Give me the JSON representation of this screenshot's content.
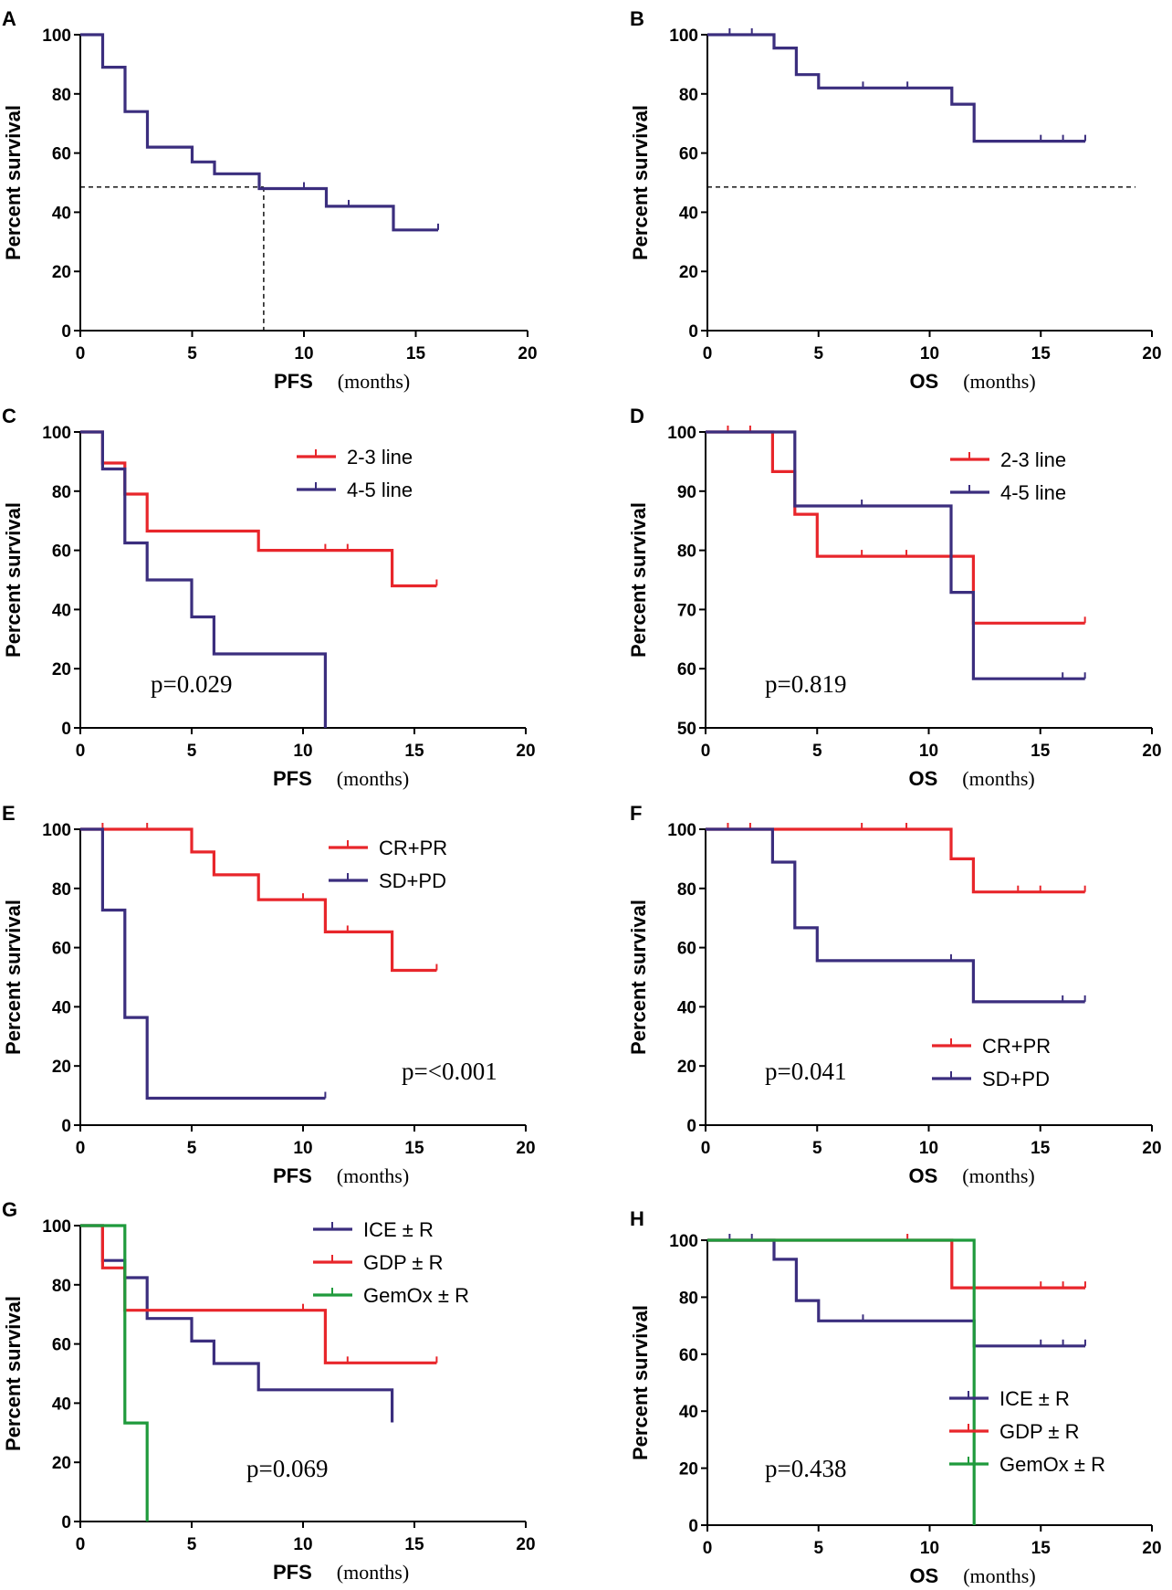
{
  "colors": {
    "navy": "#3b2e7e",
    "red": "#e8262b",
    "green": "#1f9a3c"
  },
  "chart_data": [
    {
      "panel": "A",
      "type": "line",
      "ylabel": "Percent survival",
      "xlabel": "PFS",
      "xunit": "(months)",
      "xlim": [
        0,
        20
      ],
      "ylim": [
        0,
        100
      ],
      "xticks": [
        "0",
        "5",
        "10",
        "15",
        "20"
      ],
      "yticks": [
        "0",
        "20",
        "40",
        "60",
        "80",
        "100"
      ],
      "pvalue": "",
      "reference": {
        "median_y": 48.5,
        "median_x": 8.2
      },
      "series": [
        {
          "name": "",
          "color": "navy",
          "x": [
            0,
            1,
            1,
            2,
            2,
            3,
            3,
            5,
            5,
            6,
            6,
            8,
            8,
            11,
            11,
            14,
            14,
            16
          ],
          "y": [
            100,
            100,
            89,
            89,
            74,
            74,
            62,
            62,
            57,
            57,
            53,
            53,
            48,
            48,
            42,
            42,
            34,
            34
          ],
          "censor": [
            [
              10,
              48
            ],
            [
              12,
              42
            ],
            [
              16,
              34
            ]
          ]
        }
      ]
    },
    {
      "panel": "B",
      "type": "line",
      "ylabel": "Percent survival",
      "xlabel": "OS",
      "xunit": "(months)",
      "xlim": [
        0,
        20
      ],
      "ylim": [
        0,
        100
      ],
      "xticks": [
        "0",
        "5",
        "10",
        "15",
        "20"
      ],
      "yticks": [
        "0",
        "20",
        "40",
        "60",
        "80",
        "100"
      ],
      "pvalue": "",
      "reference": {
        "median_y": 48.5
      },
      "series": [
        {
          "name": "",
          "color": "navy",
          "x": [
            0,
            3,
            3,
            4,
            4,
            5,
            5,
            11,
            11,
            12,
            12,
            17
          ],
          "y": [
            100,
            100,
            95.5,
            95.5,
            86.5,
            86.5,
            82,
            82,
            76.5,
            76.5,
            64,
            64
          ],
          "censor": [
            [
              1,
              100
            ],
            [
              2,
              100
            ],
            [
              7,
              82
            ],
            [
              9,
              82
            ],
            [
              15,
              64
            ],
            [
              16,
              64
            ],
            [
              17,
              64
            ]
          ]
        }
      ]
    },
    {
      "panel": "C",
      "type": "line",
      "ylabel": "Percent survival",
      "xlabel": "PFS",
      "xunit": "(months)",
      "xlim": [
        0,
        20
      ],
      "ylim": [
        0,
        100
      ],
      "xticks": [
        "0",
        "5",
        "10",
        "15",
        "20"
      ],
      "yticks": [
        "0",
        "20",
        "40",
        "60",
        "80",
        "100"
      ],
      "pvalue": "p=0.029",
      "series": [
        {
          "name": "2-3 line",
          "color": "red",
          "x": [
            0,
            1,
            1,
            2,
            2,
            3,
            3,
            8,
            8,
            14,
            14,
            16
          ],
          "y": [
            100,
            100,
            89.5,
            89.5,
            79,
            79,
            66.5,
            66.5,
            60,
            60,
            48,
            48
          ],
          "censor": [
            [
              11,
              60
            ],
            [
              12,
              60
            ],
            [
              16,
              48
            ]
          ]
        },
        {
          "name": "4-5 line",
          "color": "navy",
          "x": [
            0,
            1,
            1,
            2,
            2,
            3,
            3,
            5,
            5,
            6,
            6,
            11,
            11
          ],
          "y": [
            100,
            100,
            87.5,
            87.5,
            62.5,
            62.5,
            50,
            50,
            37.5,
            37.5,
            25,
            25,
            0
          ],
          "censor": []
        }
      ]
    },
    {
      "panel": "D",
      "type": "line",
      "ylabel": "Percent survival",
      "xlabel": "OS",
      "xunit": "(months)",
      "xlim": [
        0,
        20
      ],
      "ylim": [
        50,
        100
      ],
      "xticks": [
        "0",
        "5",
        "10",
        "15",
        "20"
      ],
      "yticks": [
        "50",
        "60",
        "70",
        "80",
        "90",
        "100"
      ],
      "pvalue": "p=0.819",
      "series": [
        {
          "name": "2-3 line",
          "color": "red",
          "x": [
            0,
            3,
            3,
            4,
            4,
            5,
            5,
            12,
            12,
            17
          ],
          "y": [
            100,
            100,
            93.3,
            93.3,
            86.1,
            86.1,
            79,
            79,
            67.7,
            67.7
          ],
          "censor": [
            [
              1,
              100
            ],
            [
              2,
              100
            ],
            [
              7,
              79
            ],
            [
              9,
              79
            ],
            [
              17,
              67.7
            ]
          ]
        },
        {
          "name": "4-5 line",
          "color": "navy",
          "x": [
            0,
            4,
            4,
            11,
            11,
            12,
            12,
            17
          ],
          "y": [
            100,
            100,
            87.5,
            87.5,
            72.9,
            72.9,
            58.3,
            58.3
          ],
          "censor": [
            [
              7,
              87.5
            ],
            [
              16,
              58.3
            ],
            [
              17,
              58.3
            ]
          ]
        }
      ]
    },
    {
      "panel": "E",
      "type": "line",
      "ylabel": "Percent survival",
      "xlabel": "PFS",
      "xunit": "(months)",
      "xlim": [
        0,
        20
      ],
      "ylim": [
        0,
        100
      ],
      "xticks": [
        "0",
        "5",
        "10",
        "15",
        "20"
      ],
      "yticks": [
        "0",
        "20",
        "40",
        "60",
        "80",
        "100"
      ],
      "pvalue": "p=<0.001",
      "series": [
        {
          "name": "CR+PR",
          "color": "red",
          "x": [
            0,
            5,
            5,
            6,
            6,
            8,
            8,
            11,
            11,
            14,
            14,
            16
          ],
          "y": [
            100,
            100,
            92.3,
            92.3,
            84.6,
            84.6,
            76.2,
            76.2,
            65.3,
            65.3,
            52.3,
            52.3
          ],
          "censor": [
            [
              1,
              100
            ],
            [
              3,
              100
            ],
            [
              10,
              76.2
            ],
            [
              12,
              65.3
            ],
            [
              16,
              52.3
            ]
          ]
        },
        {
          "name": "SD+PD",
          "color": "navy",
          "x": [
            0,
            1,
            1,
            2,
            2,
            3,
            3,
            11
          ],
          "y": [
            100,
            100,
            72.7,
            72.7,
            36.4,
            36.4,
            9.1,
            9.1
          ],
          "censor": [
            [
              11,
              9.1
            ]
          ]
        }
      ]
    },
    {
      "panel": "F",
      "type": "line",
      "ylabel": "Percent survival",
      "xlabel": "OS",
      "xunit": "(months)",
      "xlim": [
        0,
        20
      ],
      "ylim": [
        0,
        100
      ],
      "xticks": [
        "0",
        "5",
        "10",
        "15",
        "20"
      ],
      "yticks": [
        "0",
        "20",
        "40",
        "60",
        "80",
        "100"
      ],
      "pvalue": "p=0.041",
      "series": [
        {
          "name": "CR+PR",
          "color": "red",
          "x": [
            0,
            11,
            11,
            12,
            12,
            17
          ],
          "y": [
            100,
            100,
            90,
            90,
            78.8,
            78.8
          ],
          "censor": [
            [
              1,
              100
            ],
            [
              2,
              100
            ],
            [
              7,
              100
            ],
            [
              9,
              100
            ],
            [
              14,
              78.8
            ],
            [
              15,
              78.8
            ],
            [
              17,
              78.8
            ]
          ]
        },
        {
          "name": "SD+PD",
          "color": "navy",
          "x": [
            0,
            3,
            3,
            4,
            4,
            5,
            5,
            12,
            12,
            17
          ],
          "y": [
            100,
            100,
            88.9,
            88.9,
            66.7,
            66.7,
            55.6,
            55.6,
            41.7,
            41.7
          ],
          "censor": [
            [
              11,
              55.6
            ],
            [
              16,
              41.7
            ],
            [
              17,
              41.7
            ]
          ]
        }
      ]
    },
    {
      "panel": "G",
      "type": "line",
      "ylabel": "Percent survival",
      "xlabel": "PFS",
      "xunit": "(months)",
      "xlim": [
        0,
        20
      ],
      "ylim": [
        0,
        100
      ],
      "xticks": [
        "0",
        "5",
        "10",
        "15",
        "20"
      ],
      "yticks": [
        "0",
        "20",
        "40",
        "60",
        "80",
        "100"
      ],
      "pvalue": "p=0.069",
      "series": [
        {
          "name": "ICE ± R",
          "color": "navy",
          "x": [
            0,
            1,
            1,
            2,
            2,
            3,
            3,
            5,
            5,
            6,
            6,
            8,
            8,
            14,
            14
          ],
          "y": [
            100,
            100,
            88.2,
            88.2,
            82.4,
            82.4,
            68.6,
            68.6,
            61,
            61,
            53.4,
            53.4,
            44.5,
            44.5,
            33.5
          ],
          "censor": []
        },
        {
          "name": "GDP ± R",
          "color": "red",
          "x": [
            0,
            1,
            1,
            2,
            2,
            11,
            11,
            16
          ],
          "y": [
            100,
            100,
            85.7,
            85.7,
            71.4,
            71.4,
            53.6,
            53.6
          ],
          "censor": [
            [
              10,
              71.4
            ],
            [
              12,
              53.6
            ],
            [
              16,
              53.6
            ]
          ]
        },
        {
          "name": "GemOx ± R",
          "color": "green",
          "x": [
            0,
            2,
            2,
            3,
            3
          ],
          "y": [
            100,
            100,
            33.3,
            33.3,
            0
          ],
          "censor": []
        }
      ]
    },
    {
      "panel": "H",
      "type": "line",
      "ylabel": "Percent survival",
      "xlabel": "OS",
      "xunit": "(months)",
      "xlim": [
        0,
        20
      ],
      "ylim": [
        0,
        100
      ],
      "xticks": [
        "0",
        "5",
        "10",
        "15",
        "20"
      ],
      "yticks": [
        "0",
        "20",
        "40",
        "60",
        "80",
        "100"
      ],
      "pvalue": "p=0.438",
      "series": [
        {
          "name": "ICE ± R",
          "color": "navy",
          "x": [
            0,
            3,
            3,
            4,
            4,
            5,
            5,
            12,
            12,
            17
          ],
          "y": [
            100,
            100,
            93.3,
            93.3,
            78.8,
            78.8,
            71.7,
            71.7,
            62.9,
            62.9
          ],
          "censor": [
            [
              1,
              100
            ],
            [
              2,
              100
            ],
            [
              7,
              71.7
            ],
            [
              15,
              62.9
            ],
            [
              16,
              62.9
            ],
            [
              17,
              62.9
            ]
          ]
        },
        {
          "name": "GDP ± R",
          "color": "red",
          "x": [
            0,
            11,
            11,
            17
          ],
          "y": [
            100,
            100,
            83.3,
            83.3
          ],
          "censor": [
            [
              9,
              100
            ],
            [
              15,
              83.3
            ],
            [
              16,
              83.3
            ],
            [
              17,
              83.3
            ]
          ]
        },
        {
          "name": "GemOx ± R",
          "color": "green",
          "x": [
            0,
            12,
            12
          ],
          "y": [
            100,
            100,
            0
          ],
          "censor": []
        }
      ]
    }
  ]
}
